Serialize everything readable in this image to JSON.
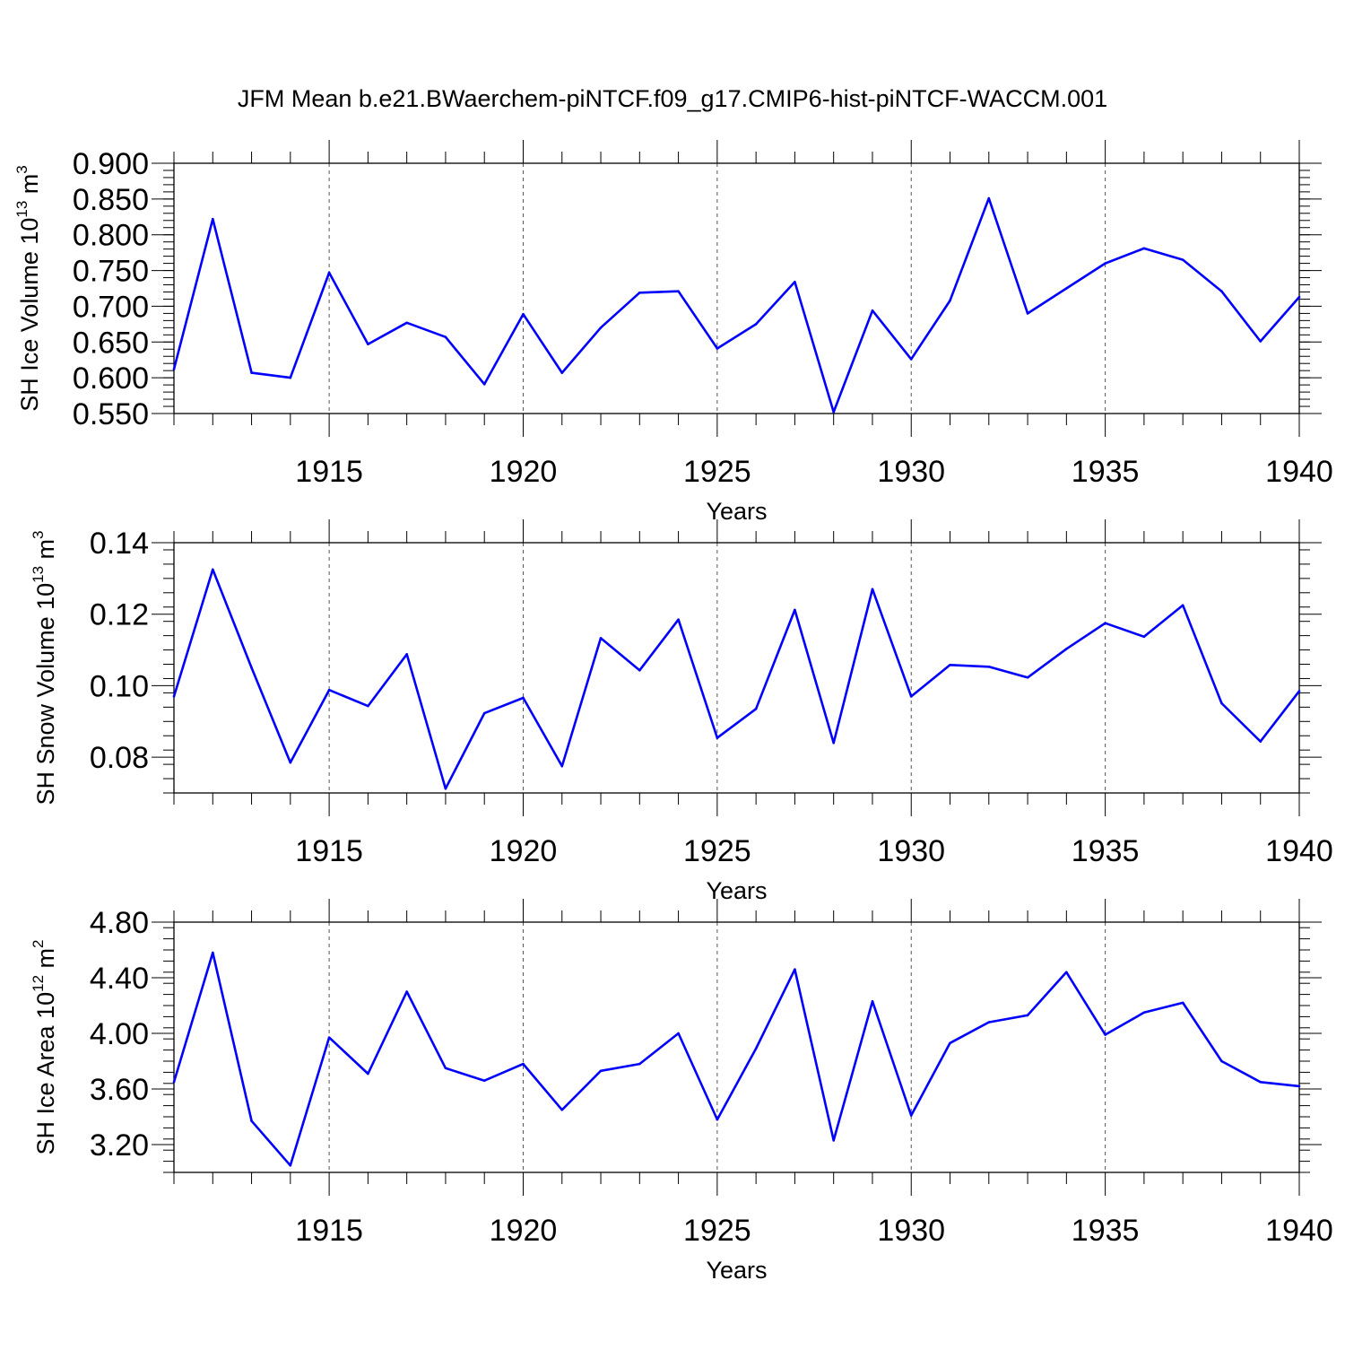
{
  "title": "JFM Mean b.e21.BWaerchem-piNTCF.f09_g17.CMIP6-hist-piNTCF-WACCM.001",
  "colors": {
    "line": "#0000ff",
    "axis": "#000000",
    "grid": "#555555"
  },
  "chart_data": [
    {
      "type": "line",
      "name": "ice-volume",
      "ylabel_main": "SH Ice Volume 10",
      "ylabel_sup": "13",
      "ylabel_unit": " m",
      "ylabel_unit_sup": "3",
      "xlabel": "Years",
      "xlim": [
        1911,
        1940
      ],
      "ylim": [
        0.55,
        0.9
      ],
      "yticks": [
        0.55,
        0.6,
        0.65,
        0.7,
        0.75,
        0.8,
        0.85,
        0.9
      ],
      "ytick_labels": [
        "0.550",
        "0.600",
        "0.650",
        "0.700",
        "0.750",
        "0.800",
        "0.850",
        "0.900"
      ],
      "xticks": [
        1915,
        1920,
        1925,
        1930,
        1935,
        1940
      ],
      "xtick_labels": [
        "1915",
        "1920",
        "1925",
        "1930",
        "1935",
        "1940"
      ],
      "x": [
        1911,
        1912,
        1913,
        1914,
        1915,
        1916,
        1917,
        1918,
        1919,
        1920,
        1921,
        1922,
        1923,
        1924,
        1925,
        1926,
        1927,
        1928,
        1929,
        1930,
        1931,
        1932,
        1933,
        1934,
        1935,
        1936,
        1937,
        1938,
        1939,
        1940
      ],
      "y": [
        0.612,
        0.822,
        0.607,
        0.6,
        0.747,
        0.647,
        0.677,
        0.657,
        0.591,
        0.689,
        0.607,
        0.67,
        0.719,
        0.721,
        0.641,
        0.675,
        0.734,
        0.552,
        0.694,
        0.626,
        0.708,
        0.851,
        0.69,
        0.725,
        0.76,
        0.781,
        0.765,
        0.721,
        0.651,
        0.713
      ]
    },
    {
      "type": "line",
      "name": "snow-volume",
      "ylabel_main": "SH Snow Volume 10",
      "ylabel_sup": "13",
      "ylabel_unit": " m",
      "ylabel_unit_sup": "3",
      "xlabel": "Years",
      "xlim": [
        1911,
        1940
      ],
      "ylim": [
        0.07,
        0.14
      ],
      "yticks": [
        0.08,
        0.1,
        0.12,
        0.14
      ],
      "ytick_labels": [
        "0.08",
        "0.10",
        "0.12",
        "0.14"
      ],
      "xticks": [
        1915,
        1920,
        1925,
        1930,
        1935,
        1940
      ],
      "xtick_labels": [
        "1915",
        "1920",
        "1925",
        "1930",
        "1935",
        "1940"
      ],
      "x": [
        1911,
        1912,
        1913,
        1914,
        1915,
        1916,
        1917,
        1918,
        1919,
        1920,
        1921,
        1922,
        1923,
        1924,
        1925,
        1926,
        1927,
        1928,
        1929,
        1930,
        1931,
        1932,
        1933,
        1934,
        1935,
        1936,
        1937,
        1938,
        1939,
        1940
      ],
      "y": [
        0.097,
        0.1325,
        0.105,
        0.0785,
        0.0988,
        0.0943,
        0.1088,
        0.0712,
        0.0923,
        0.0966,
        0.0775,
        0.1133,
        0.1043,
        0.1185,
        0.0854,
        0.0935,
        0.1212,
        0.084,
        0.127,
        0.097,
        0.1058,
        0.1053,
        0.1023,
        0.1103,
        0.1175,
        0.1137,
        0.1225,
        0.0951,
        0.0844,
        0.0985
      ]
    },
    {
      "type": "line",
      "name": "ice-area",
      "ylabel_main": "SH Ice Area 10",
      "ylabel_sup": "12",
      "ylabel_unit": " m",
      "ylabel_unit_sup": "2",
      "xlabel": "Years",
      "xlim": [
        1911,
        1940
      ],
      "ylim": [
        3.0,
        4.8
      ],
      "yticks": [
        3.2,
        3.6,
        4.0,
        4.4,
        4.8
      ],
      "ytick_labels": [
        "3.20",
        "3.60",
        "4.00",
        "4.40",
        "4.80"
      ],
      "xticks": [
        1915,
        1920,
        1925,
        1930,
        1935,
        1940
      ],
      "xtick_labels": [
        "1915",
        "1920",
        "1925",
        "1930",
        "1935",
        "1940"
      ],
      "x": [
        1911,
        1912,
        1913,
        1914,
        1915,
        1916,
        1917,
        1918,
        1919,
        1920,
        1921,
        1922,
        1923,
        1924,
        1925,
        1926,
        1927,
        1928,
        1929,
        1930,
        1931,
        1932,
        1933,
        1934,
        1935,
        1936,
        1937,
        1938,
        1939,
        1940
      ],
      "y": [
        3.65,
        4.58,
        3.37,
        3.05,
        3.97,
        3.71,
        4.3,
        3.75,
        3.66,
        3.78,
        3.45,
        3.73,
        3.78,
        4.0,
        3.38,
        3.89,
        4.46,
        3.23,
        4.23,
        3.41,
        3.93,
        4.08,
        4.13,
        4.44,
        3.99,
        4.15,
        4.22,
        3.8,
        3.65,
        3.62
      ]
    }
  ]
}
